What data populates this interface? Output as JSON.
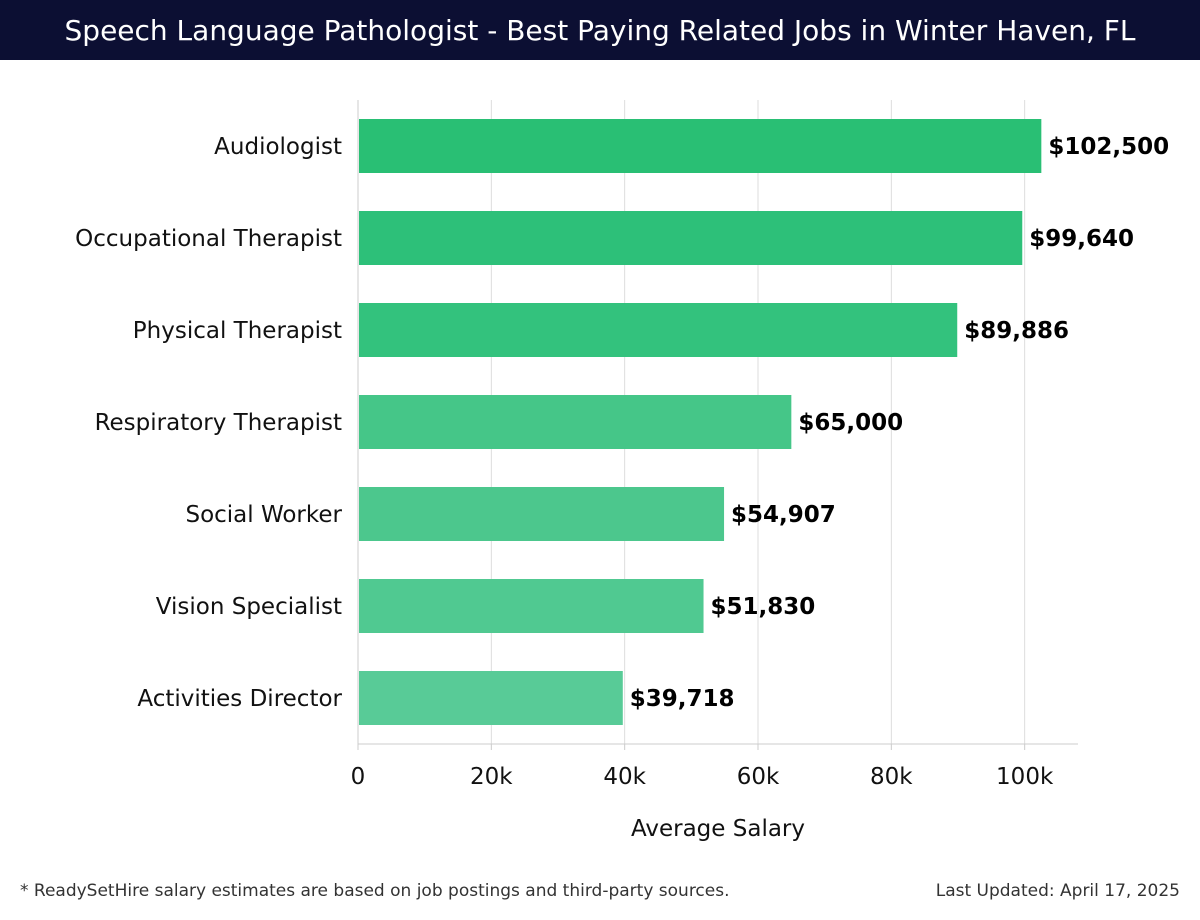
{
  "header": {
    "title": "Speech Language Pathologist - Best Paying Related Jobs in Winter Haven, FL"
  },
  "footer": {
    "note": "* ReadySetHire salary estimates are based on job postings and third-party sources.",
    "updated": "Last Updated: April 17, 2025"
  },
  "colors": {
    "header_bg": "#0c0f33",
    "bar_colors": [
      "#29bf74",
      "#2dc079",
      "#33c27d",
      "#45c688",
      "#4cc78d",
      "#50c991",
      "#58cb97"
    ],
    "grid": "#dddddd",
    "axis": "#cccccc"
  },
  "chart_data": {
    "type": "bar",
    "orientation": "horizontal",
    "categories": [
      "Audiologist",
      "Occupational Therapist",
      "Physical Therapist",
      "Respiratory Therapist",
      "Social Worker",
      "Vision Specialist",
      "Activities Director"
    ],
    "values": [
      102500,
      99640,
      89886,
      65000,
      54907,
      51830,
      39718
    ],
    "value_labels": [
      "$102,500",
      "$99,640",
      "$89,886",
      "$65,000",
      "$54,907",
      "$51,830",
      "$39,718"
    ],
    "xlabel": "Average Salary",
    "ylabel": "",
    "xlim": [
      0,
      108000
    ],
    "xticks": [
      0,
      20000,
      40000,
      60000,
      80000,
      100000
    ],
    "xtick_labels": [
      "0",
      "20k",
      "40k",
      "60k",
      "80k",
      "100k"
    ],
    "grid": true
  }
}
